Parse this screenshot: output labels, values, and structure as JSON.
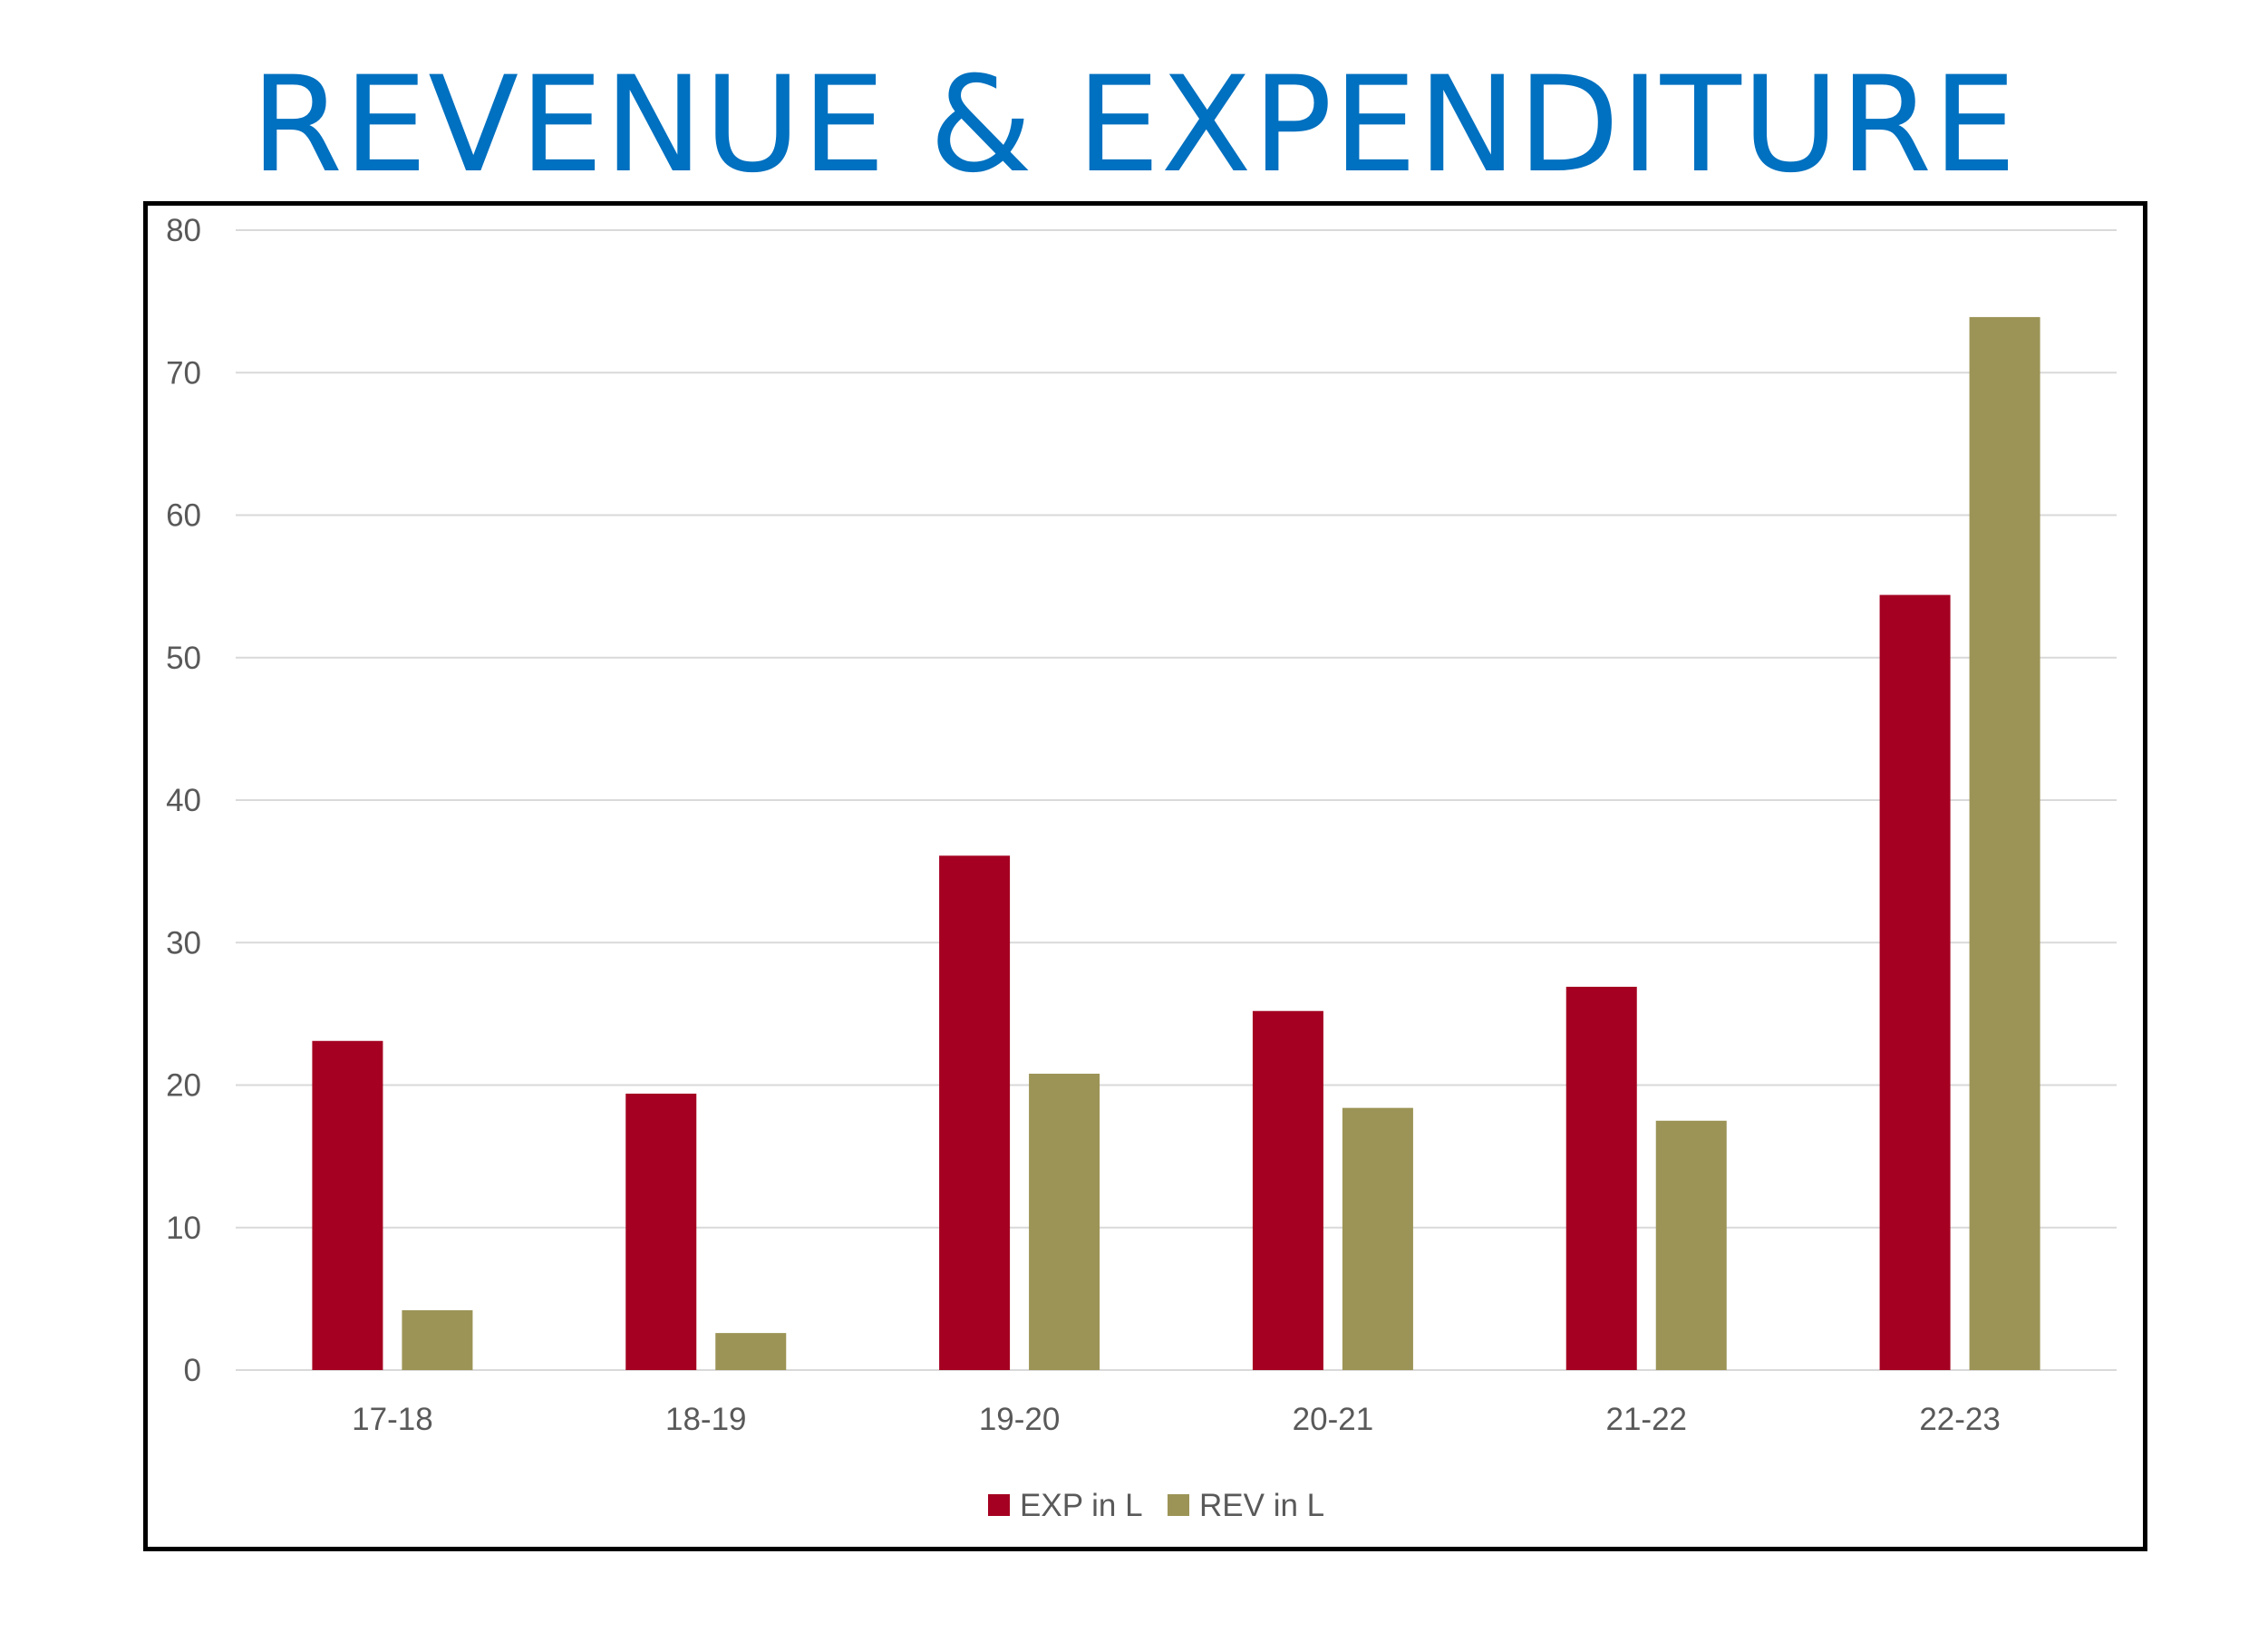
{
  "title": "REVENUE & EXPENDITURE",
  "chart_data": {
    "type": "bar",
    "title": "REVENUE & EXPENDITURE",
    "xlabel": "",
    "ylabel": "",
    "categories": [
      "17-18",
      "18-19",
      "19-20",
      "20-21",
      "21-22",
      "22-23"
    ],
    "series": [
      {
        "name": "EXP in L",
        "color": "#a50021",
        "values": [
          23.1,
          19.4,
          36.1,
          25.2,
          26.9,
          54.4
        ]
      },
      {
        "name": "REV in L",
        "color": "#9c9456",
        "values": [
          4.2,
          2.6,
          20.8,
          18.4,
          17.5,
          73.9
        ]
      }
    ],
    "ylim": [
      0,
      80
    ],
    "yticks": [
      0,
      10,
      20,
      30,
      40,
      50,
      60,
      70,
      80
    ],
    "grid": true,
    "legend_position": "bottom"
  }
}
